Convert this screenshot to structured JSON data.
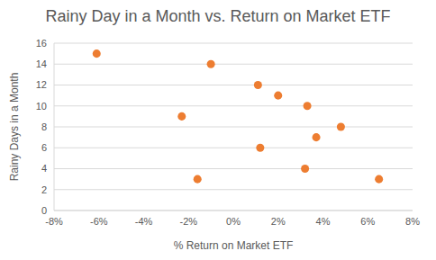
{
  "chart_data": {
    "type": "scatter",
    "title": "Rainy Day in a Month vs. Return on Market ETF",
    "x_label": "% Return on Market ETF",
    "y_label": "Rainy Days in a Month",
    "x": [
      -6.1,
      -1.0,
      -2.3,
      -1.6,
      1.1,
      2.0,
      3.3,
      4.8,
      3.7,
      1.2,
      3.2,
      6.5
    ],
    "values": [
      15,
      14,
      9,
      3,
      12,
      11,
      10,
      8,
      7,
      6,
      4,
      3
    ],
    "color": "#ed7d31",
    "marker": "circle",
    "xlim": [
      -8,
      8
    ],
    "xticks": [
      {
        "value": -8,
        "label": "-8%"
      },
      {
        "value": -6,
        "label": "-6%"
      },
      {
        "value": -4,
        "label": "-4%"
      },
      {
        "value": -2,
        "label": "-2%"
      },
      {
        "value": 0,
        "label": "0%"
      },
      {
        "value": 2,
        "label": "2%"
      },
      {
        "value": 4,
        "label": "4%"
      },
      {
        "value": 6,
        "label": "6%"
      },
      {
        "value": 8,
        "label": "8%"
      }
    ],
    "ylim": [
      0,
      16
    ],
    "yticks": [
      0,
      2,
      4,
      6,
      8,
      10,
      12,
      14,
      16
    ],
    "grid": true
  }
}
